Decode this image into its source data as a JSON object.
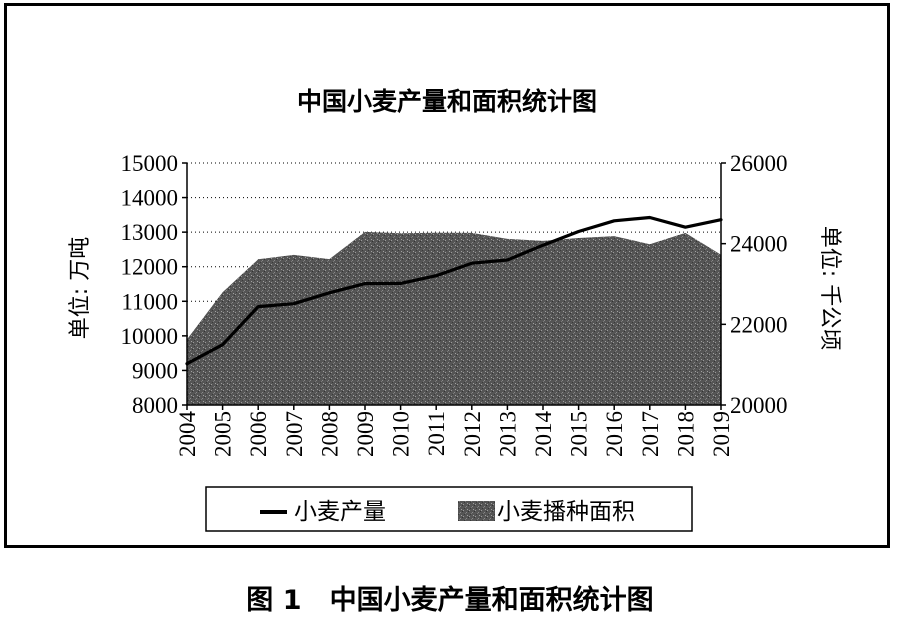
{
  "figure_caption": "图 1   中国小麦产量和面积统计图",
  "chart_data": {
    "type": "line+area",
    "title": "中国小麦产量和面积统计图",
    "x": [
      "2004",
      "2005",
      "2006",
      "2007",
      "2008",
      "2009",
      "2010",
      "2011",
      "2012",
      "2013",
      "2014",
      "2015",
      "2016",
      "2017",
      "2018",
      "2019"
    ],
    "y_left": {
      "label": "单位: 万吨",
      "range": [
        8000,
        15000
      ],
      "ticks": [
        8000,
        9000,
        10000,
        11000,
        12000,
        13000,
        14000,
        15000
      ]
    },
    "y_right": {
      "label": "单位: 千公顷",
      "range": [
        20000,
        26000
      ],
      "ticks": [
        20000,
        22000,
        24000,
        26000
      ]
    },
    "series": [
      {
        "name": "小麦产量",
        "kind": "line",
        "axis": "left",
        "color": "#000000",
        "values": [
          9195,
          9745,
          10847,
          10930,
          11246,
          11512,
          11518,
          11740,
          12102,
          12193,
          12621,
          13019,
          13327,
          13424,
          13144,
          13360
        ]
      },
      {
        "name": "小麦播种面积",
        "kind": "area",
        "axis": "right",
        "color": "#5a5a5a",
        "values": [
          21626,
          22793,
          23613,
          23721,
          23617,
          24291,
          24257,
          24270,
          24268,
          24117,
          24069,
          24141,
          24187,
          23988,
          24266,
          23727
        ]
      }
    ],
    "grid": {
      "horizontal": "dotted",
      "vertical": false
    },
    "legend": {
      "position": "bottom",
      "items": [
        "小麦产量",
        "小麦播种面积"
      ]
    }
  }
}
